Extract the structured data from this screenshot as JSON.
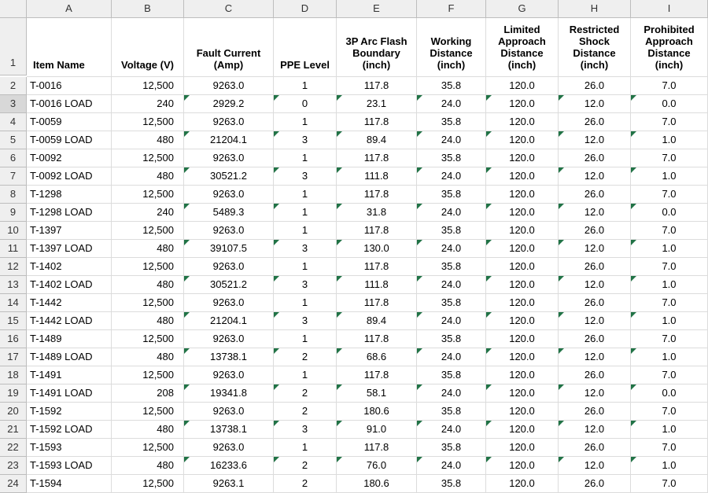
{
  "colors": {
    "gridline": "#dcdcdc",
    "header_bg": "#efefef",
    "header_border": "#bdbdbd",
    "flag": "#217346",
    "selected_row_hdr": "#d8d8d8"
  },
  "column_letters": [
    "A",
    "B",
    "C",
    "D",
    "E",
    "F",
    "G",
    "H",
    "I"
  ],
  "headers": [
    "Item Name",
    "Voltage (V)",
    "Fault Current (Amp)",
    "PPE Level",
    "3P Arc Flash Boundary (inch)",
    "Working Distance (inch)",
    "Limited Approach Distance (inch)",
    "Restricted Shock Distance (inch)",
    "Prohibited Approach Distance (inch)"
  ],
  "col_align": [
    "txt",
    "numR",
    "numC",
    "numC",
    "numC",
    "numC",
    "numC",
    "numC",
    "numC"
  ],
  "flag_cols": [
    false,
    false,
    true,
    true,
    true,
    true,
    true,
    true,
    true
  ],
  "selected_row_number": 3,
  "start_row_number": 2,
  "rows": [
    {
      "flag": false,
      "c": [
        "T-0016",
        "12,500",
        "9263.0",
        "1",
        "117.8",
        "35.8",
        "120.0",
        "26.0",
        "7.0"
      ]
    },
    {
      "flag": true,
      "c": [
        "T-0016 LOAD",
        "240",
        "2929.2",
        "0",
        "23.1",
        "24.0",
        "120.0",
        "12.0",
        "0.0"
      ]
    },
    {
      "flag": false,
      "c": [
        "T-0059",
        "12,500",
        "9263.0",
        "1",
        "117.8",
        "35.8",
        "120.0",
        "26.0",
        "7.0"
      ]
    },
    {
      "flag": true,
      "c": [
        "T-0059 LOAD",
        "480",
        "21204.1",
        "3",
        "89.4",
        "24.0",
        "120.0",
        "12.0",
        "1.0"
      ]
    },
    {
      "flag": false,
      "c": [
        "T-0092",
        "12,500",
        "9263.0",
        "1",
        "117.8",
        "35.8",
        "120.0",
        "26.0",
        "7.0"
      ]
    },
    {
      "flag": true,
      "c": [
        "T-0092 LOAD",
        "480",
        "30521.2",
        "3",
        "111.8",
        "24.0",
        "120.0",
        "12.0",
        "1.0"
      ]
    },
    {
      "flag": false,
      "c": [
        "T-1298",
        "12,500",
        "9263.0",
        "1",
        "117.8",
        "35.8",
        "120.0",
        "26.0",
        "7.0"
      ]
    },
    {
      "flag": true,
      "c": [
        "T-1298 LOAD",
        "240",
        "5489.3",
        "1",
        "31.8",
        "24.0",
        "120.0",
        "12.0",
        "0.0"
      ]
    },
    {
      "flag": false,
      "c": [
        "T-1397",
        "12,500",
        "9263.0",
        "1",
        "117.8",
        "35.8",
        "120.0",
        "26.0",
        "7.0"
      ]
    },
    {
      "flag": true,
      "c": [
        "T-1397 LOAD",
        "480",
        "39107.5",
        "3",
        "130.0",
        "24.0",
        "120.0",
        "12.0",
        "1.0"
      ]
    },
    {
      "flag": false,
      "c": [
        "T-1402",
        "12,500",
        "9263.0",
        "1",
        "117.8",
        "35.8",
        "120.0",
        "26.0",
        "7.0"
      ]
    },
    {
      "flag": true,
      "c": [
        "T-1402 LOAD",
        "480",
        "30521.2",
        "3",
        "111.8",
        "24.0",
        "120.0",
        "12.0",
        "1.0"
      ]
    },
    {
      "flag": false,
      "c": [
        "T-1442",
        "12,500",
        "9263.0",
        "1",
        "117.8",
        "35.8",
        "120.0",
        "26.0",
        "7.0"
      ]
    },
    {
      "flag": true,
      "c": [
        "T-1442 LOAD",
        "480",
        "21204.1",
        "3",
        "89.4",
        "24.0",
        "120.0",
        "12.0",
        "1.0"
      ]
    },
    {
      "flag": false,
      "c": [
        "T-1489",
        "12,500",
        "9263.0",
        "1",
        "117.8",
        "35.8",
        "120.0",
        "26.0",
        "7.0"
      ]
    },
    {
      "flag": true,
      "c": [
        "T-1489 LOAD",
        "480",
        "13738.1",
        "2",
        "68.6",
        "24.0",
        "120.0",
        "12.0",
        "1.0"
      ]
    },
    {
      "flag": false,
      "c": [
        "T-1491",
        "12,500",
        "9263.0",
        "1",
        "117.8",
        "35.8",
        "120.0",
        "26.0",
        "7.0"
      ]
    },
    {
      "flag": true,
      "c": [
        "T-1491 LOAD",
        "208",
        "19341.8",
        "2",
        "58.1",
        "24.0",
        "120.0",
        "12.0",
        "0.0"
      ]
    },
    {
      "flag": false,
      "c": [
        "T-1592",
        "12,500",
        "9263.0",
        "2",
        "180.6",
        "35.8",
        "120.0",
        "26.0",
        "7.0"
      ]
    },
    {
      "flag": true,
      "c": [
        "T-1592 LOAD",
        "480",
        "13738.1",
        "3",
        "91.0",
        "24.0",
        "120.0",
        "12.0",
        "1.0"
      ]
    },
    {
      "flag": false,
      "c": [
        "T-1593",
        "12,500",
        "9263.0",
        "1",
        "117.8",
        "35.8",
        "120.0",
        "26.0",
        "7.0"
      ]
    },
    {
      "flag": true,
      "c": [
        "T-1593 LOAD",
        "480",
        "16233.6",
        "2",
        "76.0",
        "24.0",
        "120.0",
        "12.0",
        "1.0"
      ]
    },
    {
      "flag": false,
      "c": [
        "T-1594",
        "12,500",
        "9263.1",
        "2",
        "180.6",
        "35.8",
        "120.0",
        "26.0",
        "7.0"
      ]
    }
  ]
}
